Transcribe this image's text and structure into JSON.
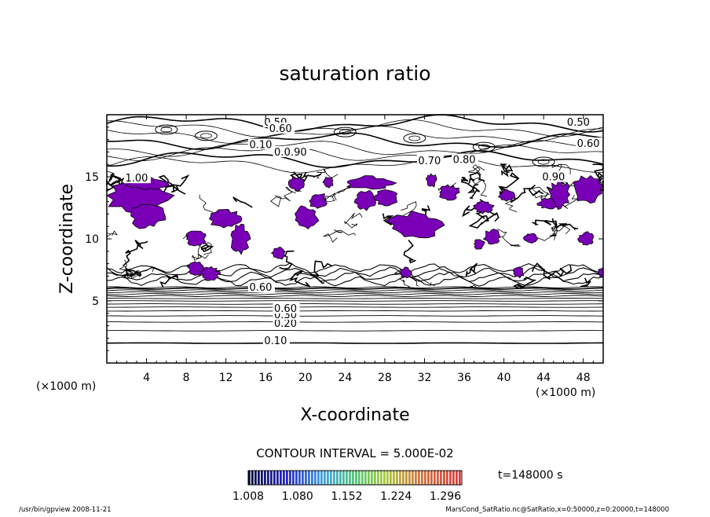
{
  "chart_data": {
    "type": "contour",
    "title": "saturation ratio",
    "xlabel": "X-coordinate",
    "ylabel": "Z-coordinate",
    "x_unit": "(×1000 m)",
    "y_unit": "(×1000 m)",
    "xlim": [
      0,
      50
    ],
    "ylim": [
      0,
      20
    ],
    "x_ticks": [
      4,
      8,
      12,
      16,
      20,
      24,
      28,
      32,
      36,
      40,
      44,
      48
    ],
    "y_ticks": [
      5,
      10,
      15
    ],
    "contour_interval_text": "CONTOUR INTERVAL = 5.000E-02",
    "time_text": "t=148000 s",
    "colorbar_ticks": [
      "1.008",
      "1.080",
      "1.152",
      "1.224",
      "1.296"
    ],
    "colorbar_range": [
      1.008,
      1.32
    ],
    "contour_labels": [
      "0.10",
      "0.20",
      "0.30",
      "0.60",
      "0.60",
      "0.50",
      "0.50",
      "0.60",
      "0.60",
      "0.70",
      "0.80",
      "0.90",
      "0.10",
      "1.00",
      "0.80",
      "0.90"
    ],
    "footer_left": "/usr/bin/gpview   2008-11-21",
    "footer_right": "MarsCond_SatRatio.nc@SatRatio,x=0:50000,z=0:20000,t=148000",
    "fill_color": "#7a00b8",
    "grid": false
  }
}
